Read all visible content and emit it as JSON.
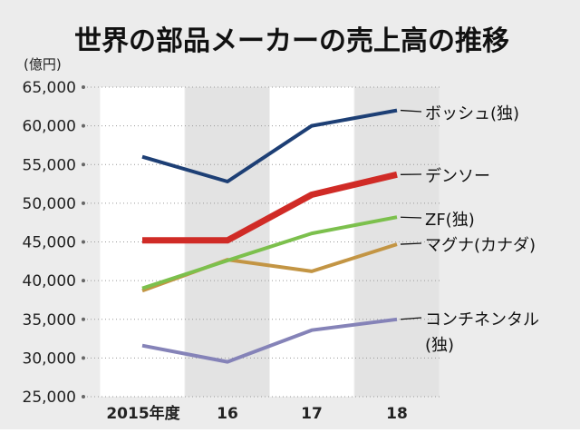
{
  "chart_data": {
    "type": "line",
    "title": "世界の部品メーカーの売上高の推移",
    "unit_label": "(億円)",
    "categories": [
      "2015年度",
      "16",
      "17",
      "18"
    ],
    "ylim": [
      25000,
      65000
    ],
    "yticks": [
      25000,
      30000,
      35000,
      40000,
      45000,
      50000,
      55000,
      60000,
      65000
    ],
    "ytick_labels": [
      "25,000",
      "30,000",
      "35,000",
      "40,000",
      "45,000",
      "50,000",
      "55,000",
      "60,000",
      "65,000"
    ],
    "grid": "dotted horizontal",
    "series": [
      {
        "name": "ボッシュ(独)",
        "label_lines": [
          "ボッシュ(独)"
        ],
        "color": "#1d3f75",
        "width": 4,
        "values": [
          56000,
          52800,
          60000,
          62000
        ]
      },
      {
        "name": "デンソー",
        "label_lines": [
          "デンソー"
        ],
        "color": "#d02b26",
        "width": 7,
        "values": [
          45200,
          45200,
          51100,
          53700
        ]
      },
      {
        "name": "ZF(独)",
        "label_lines": [
          "ZF(独)"
        ],
        "color": "#7cc04d",
        "width": 4,
        "values": [
          39000,
          42600,
          46100,
          48200
        ]
      },
      {
        "name": "マグナ(カナダ)",
        "label_lines": [
          "マグナ(カナダ)"
        ],
        "color": "#c39544",
        "width": 4,
        "values": [
          38700,
          42700,
          41200,
          44700
        ]
      },
      {
        "name": "コンチネンタル(独)",
        "label_lines": [
          "コンチネンタル",
          "(独)"
        ],
        "color": "#8583b8",
        "width": 4,
        "values": [
          31600,
          29500,
          33600,
          35000
        ]
      }
    ]
  }
}
